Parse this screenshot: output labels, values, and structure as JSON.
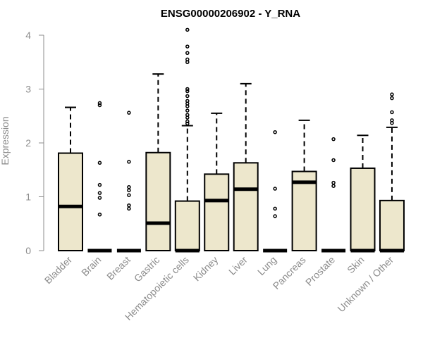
{
  "chart_data": {
    "type": "box",
    "title": "ENSG00000206902 - Y_RNA",
    "ylabel": "Expression",
    "xlabel": "",
    "ylim": [
      0,
      4.1
    ],
    "yticks": [
      0,
      1,
      2,
      3,
      4
    ],
    "colors": {
      "box_fill": "#ede7cc",
      "stroke": "#000000",
      "axis": "#8c8c8c"
    },
    "boxes": [
      {
        "label": "Bladder",
        "q1": 0,
        "median": 0.82,
        "q3": 1.81,
        "whisker_low": 0,
        "whisker_high": 2.66,
        "outliers": []
      },
      {
        "label": "Brain",
        "q1": 0,
        "median": 0,
        "q3": 0,
        "whisker_low": 0,
        "whisker_high": 0,
        "outliers": [
          2.74,
          2.7,
          1.63,
          1.22,
          1.07,
          0.98,
          0.67
        ]
      },
      {
        "label": "Breast",
        "q1": 0,
        "median": 0,
        "q3": 0,
        "whisker_low": 0,
        "whisker_high": 0,
        "outliers": [
          2.56,
          1.65,
          1.18,
          1.12,
          1.03,
          0.84,
          0.78
        ]
      },
      {
        "label": "Gastric",
        "q1": 0,
        "median": 0.51,
        "q3": 1.82,
        "whisker_low": 0,
        "whisker_high": 3.28,
        "outliers": []
      },
      {
        "label": "Hematopoietic cells",
        "q1": 0,
        "median": 0,
        "q3": 0.92,
        "whisker_low": 0,
        "whisker_high": 2.32,
        "outliers": [
          4.1,
          3.79,
          3.67,
          3.55,
          3.5,
          3.0,
          2.96,
          2.87,
          2.78,
          2.73,
          2.68,
          2.6,
          2.52,
          2.47,
          2.4,
          2.36
        ]
      },
      {
        "label": "Kidney",
        "q1": 0,
        "median": 0.93,
        "q3": 1.42,
        "whisker_low": 0,
        "whisker_high": 2.55,
        "outliers": []
      },
      {
        "label": "Liver",
        "q1": 0,
        "median": 1.14,
        "q3": 1.63,
        "whisker_low": 0,
        "whisker_high": 3.1,
        "outliers": []
      },
      {
        "label": "Lung",
        "q1": 0,
        "median": 0,
        "q3": 0,
        "whisker_low": 0,
        "whisker_high": 0,
        "outliers": [
          2.2,
          1.15,
          0.78,
          0.64
        ]
      },
      {
        "label": "Pancreas",
        "q1": 0,
        "median": 1.27,
        "q3": 1.47,
        "whisker_low": 0,
        "whisker_high": 2.42,
        "outliers": []
      },
      {
        "label": "Prostate",
        "q1": 0,
        "median": 0,
        "q3": 0,
        "whisker_low": 0,
        "whisker_high": 0,
        "outliers": [
          2.07,
          1.68,
          1.26,
          1.2
        ]
      },
      {
        "label": "Skin",
        "q1": 0,
        "median": 0,
        "q3": 1.53,
        "whisker_low": 0,
        "whisker_high": 2.14,
        "outliers": []
      },
      {
        "label": "Unknown / Other",
        "q1": 0,
        "median": 0,
        "q3": 0.93,
        "whisker_low": 0,
        "whisker_high": 2.29,
        "outliers": [
          2.9,
          2.83,
          2.57,
          2.42,
          2.37
        ]
      }
    ]
  }
}
